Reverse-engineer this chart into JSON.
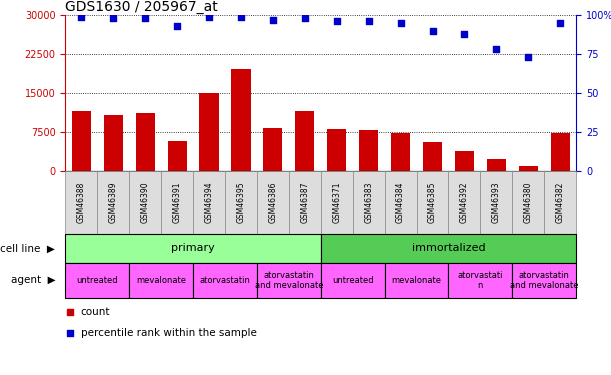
{
  "title": "GDS1630 / 205967_at",
  "samples": [
    "GSM46388",
    "GSM46389",
    "GSM46390",
    "GSM46391",
    "GSM46394",
    "GSM46395",
    "GSM46386",
    "GSM46387",
    "GSM46371",
    "GSM46383",
    "GSM46384",
    "GSM46385",
    "GSM46392",
    "GSM46393",
    "GSM46380",
    "GSM46382"
  ],
  "counts": [
    11500,
    10800,
    11200,
    5800,
    15000,
    19500,
    8200,
    11500,
    8000,
    7800,
    7200,
    5500,
    3800,
    2200,
    900,
    7200
  ],
  "percentile_ranks": [
    99,
    98,
    98,
    93,
    99,
    99,
    97,
    98,
    96,
    96,
    95,
    90,
    88,
    78,
    73,
    95
  ],
  "ylim_left": [
    0,
    30000
  ],
  "ylim_right": [
    0,
    100
  ],
  "yticks_left": [
    0,
    7500,
    15000,
    22500,
    30000
  ],
  "yticks_right": [
    0,
    25,
    50,
    75,
    100
  ],
  "bar_color": "#cc0000",
  "dot_color": "#0000cc",
  "cell_line_primary_color": "#99ff99",
  "cell_line_immortalized_color": "#55cc55",
  "agent_color": "#ff66ff",
  "cell_line_primary_label": "primary",
  "cell_line_immortalized_label": "immortalized",
  "cell_line_primary_range": [
    0,
    8
  ],
  "cell_line_immortalized_range": [
    8,
    16
  ],
  "agents": [
    {
      "label": "untreated",
      "start": 0,
      "end": 2
    },
    {
      "label": "mevalonate",
      "start": 2,
      "end": 4
    },
    {
      "label": "atorvastatin",
      "start": 4,
      "end": 6
    },
    {
      "label": "atorvastatin\nand mevalonate",
      "start": 6,
      "end": 8
    },
    {
      "label": "untreated",
      "start": 8,
      "end": 10
    },
    {
      "label": "mevalonate",
      "start": 10,
      "end": 12
    },
    {
      "label": "atorvastati\nn",
      "start": 12,
      "end": 14
    },
    {
      "label": "atorvastatin\nand mevalonate",
      "start": 14,
      "end": 16
    }
  ],
  "label_fontsize": 8,
  "tick_fontsize": 7,
  "title_fontsize": 10
}
